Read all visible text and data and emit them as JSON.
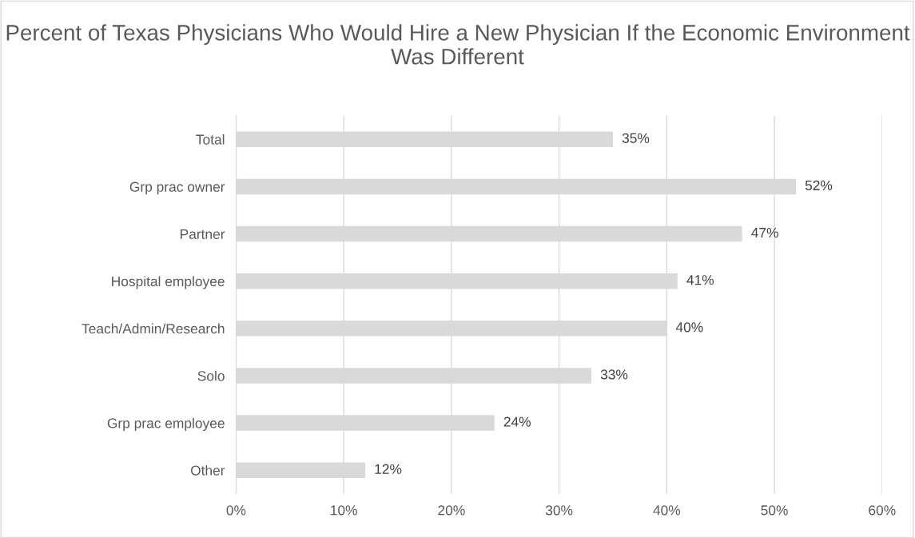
{
  "chart_data": {
    "type": "bar",
    "orientation": "horizontal",
    "title": "Percent of Texas Physicians Who Would Hire a New Physician If the Economic Environment Was Different",
    "categories": [
      "Total",
      "Grp prac owner",
      "Partner",
      "Hospital employee",
      "Teach/Admin/Research",
      "Solo",
      "Grp prac employee",
      "Other"
    ],
    "values": [
      35,
      52,
      47,
      41,
      40,
      33,
      24,
      12
    ],
    "value_labels": [
      "35%",
      "52%",
      "47%",
      "41%",
      "40%",
      "33%",
      "24%",
      "12%"
    ],
    "color": "#d9d9d9",
    "xlim": [
      0,
      60
    ],
    "xticks": [
      {
        "value": 0,
        "label": "0%"
      },
      {
        "value": 10,
        "label": "10%"
      },
      {
        "value": 20,
        "label": "20%"
      },
      {
        "value": 30,
        "label": "30%"
      },
      {
        "value": 40,
        "label": "40%"
      },
      {
        "value": 50,
        "label": "50%"
      },
      {
        "value": 60,
        "label": "60%"
      }
    ],
    "grid": "x",
    "legend": false
  }
}
